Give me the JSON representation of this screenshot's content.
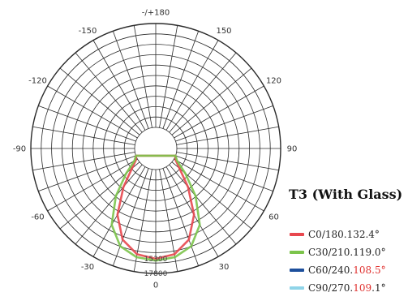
{
  "chart_data": {
    "type": "polar",
    "angle_labels": [
      {
        "angle": 180,
        "text": "-/+180"
      },
      {
        "angle": -150,
        "text": "-150"
      },
      {
        "angle": 150,
        "text": "150"
      },
      {
        "angle": -120,
        "text": "-120"
      },
      {
        "angle": 120,
        "text": "120"
      },
      {
        "angle": -90,
        "text": "-90"
      },
      {
        "angle": 90,
        "text": "90"
      },
      {
        "angle": -60,
        "text": "-60"
      },
      {
        "angle": 60,
        "text": "60"
      },
      {
        "angle": -30,
        "text": "-30"
      },
      {
        "angle": 30,
        "text": "30"
      },
      {
        "angle": 0,
        "text": "0"
      }
    ],
    "radial_rings": 10,
    "radial_max": 17800,
    "radial_tick_labels": [
      "17800",
      "15300"
    ],
    "grid": true,
    "series": [
      {
        "name": "C0/180.132.4°",
        "color": "#e8474e",
        "points": [
          [
            0,
            15300
          ],
          [
            10,
            14800
          ],
          [
            20,
            13000
          ],
          [
            30,
            9500
          ],
          [
            40,
            5000
          ],
          [
            50,
            1700
          ],
          [
            60,
            300
          ],
          [
            70,
            0
          ]
        ]
      },
      {
        "name": "C30/210.119.0°",
        "color": "#7cc44b",
        "points": [
          [
            0,
            15600
          ],
          [
            10,
            15300
          ],
          [
            20,
            14200
          ],
          [
            30,
            11500
          ],
          [
            40,
            7000
          ],
          [
            50,
            3000
          ],
          [
            60,
            600
          ],
          [
            70,
            0
          ]
        ]
      },
      {
        "name": "C60/240.108.5°",
        "color": "#1d4f9c",
        "points": []
      },
      {
        "name": "C90/270.109.1°",
        "color": "#8fd4e8",
        "points": []
      }
    ]
  },
  "legend": {
    "title": "T3 (With Glass)",
    "items": [
      {
        "prefix": "C0/180.132.4°",
        "highlight": "",
        "suffix": "",
        "color": "#e8474e"
      },
      {
        "prefix": "C30/210.119.0°",
        "highlight": "",
        "suffix": "",
        "color": "#7cc44b"
      },
      {
        "prefix": "C60/240.",
        "highlight": "108.5°",
        "suffix": "",
        "color": "#1d4f9c"
      },
      {
        "prefix": "C90/270.",
        "highlight": "109",
        "suffix": ".1°",
        "color": "#8fd4e8"
      }
    ],
    "highlight_color": "#e0312f"
  }
}
